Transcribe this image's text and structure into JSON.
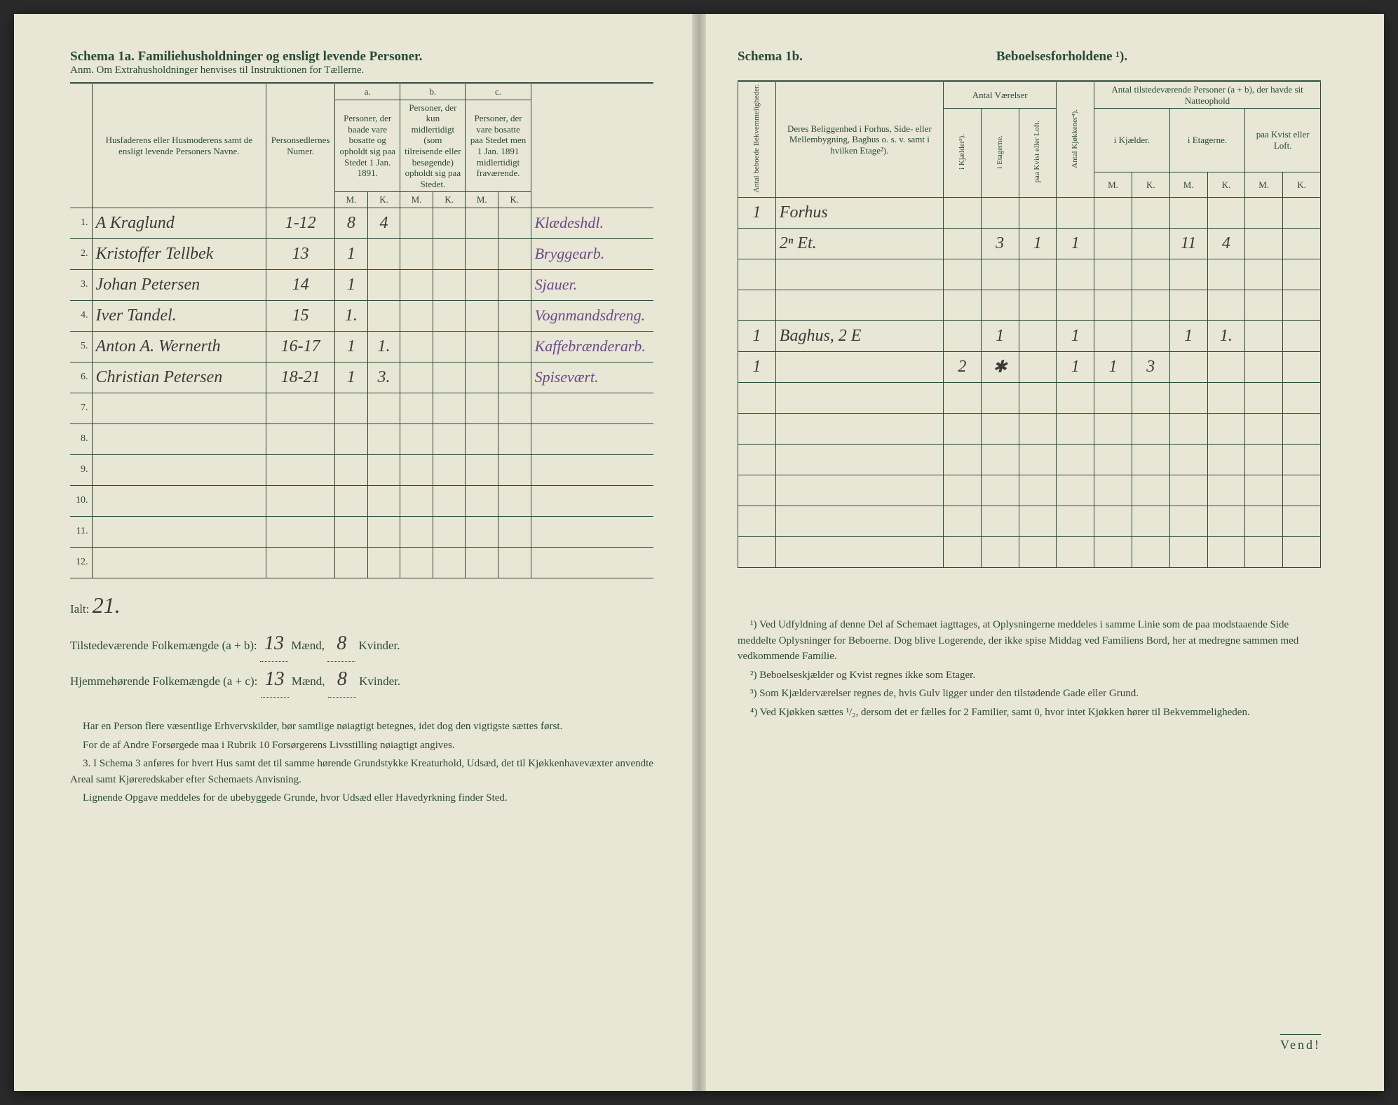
{
  "left": {
    "title": "Schema 1a.  Familiehusholdninger og ensligt levende Personer.",
    "subtitle": "Anm. Om Extrahusholdninger henvises til Instruktionen for Tællerne.",
    "headers": {
      "col1": "Husfaderens eller Husmoderens samt de ensligt levende Personers Navne.",
      "col2": "Personsedlernes Numer.",
      "sec_a": "a.",
      "sec_a_text": "Personer, der baade vare bosatte og opholdt sig paa Stedet 1 Jan. 1891.",
      "sec_b": "b.",
      "sec_b_text": "Personer, der kun midlertidigt (som tilreisende eller besøgende) opholdt sig paa Stedet.",
      "sec_c": "c.",
      "sec_c_text": "Personer, der vare bosatte paa Stedet men 1 Jan. 1891 midlertidigt fraværende.",
      "M": "M.",
      "K": "K."
    },
    "rows": [
      {
        "n": "1.",
        "name": "A Kraglund",
        "ids": "1-12",
        "aM": "8",
        "aK": "4",
        "bM": "",
        "bK": "",
        "cM": "",
        "cK": "",
        "occ": "Klædeshdl."
      },
      {
        "n": "2.",
        "name": "Kristoffer Tellbek",
        "ids": "13",
        "aM": "1",
        "aK": "",
        "bM": "",
        "bK": "",
        "cM": "",
        "cK": "",
        "occ": "Bryggearb."
      },
      {
        "n": "3.",
        "name": "Johan Petersen",
        "ids": "14",
        "aM": "1",
        "aK": "",
        "bM": "",
        "bK": "",
        "cM": "",
        "cK": "",
        "occ": "Sjauer."
      },
      {
        "n": "4.",
        "name": "Iver Tandel.",
        "ids": "15",
        "aM": "1.",
        "aK": "",
        "bM": "",
        "bK": "",
        "cM": "",
        "cK": "",
        "occ": "Vognmandsdreng."
      },
      {
        "n": "5.",
        "name": "Anton A. Wernerth",
        "ids": "16-17",
        "aM": "1",
        "aK": "1.",
        "bM": "",
        "bK": "",
        "cM": "",
        "cK": "",
        "occ": "Kaffebrænderarb."
      },
      {
        "n": "6.",
        "name": "Christian Petersen",
        "ids": "18-21",
        "aM": "1",
        "aK": "3.",
        "bM": "",
        "bK": "",
        "cM": "",
        "cK": "",
        "occ": "Spisevært."
      },
      {
        "n": "7.",
        "name": "",
        "ids": "",
        "aM": "",
        "aK": "",
        "bM": "",
        "bK": "",
        "cM": "",
        "cK": "",
        "occ": ""
      },
      {
        "n": "8.",
        "name": "",
        "ids": "",
        "aM": "",
        "aK": "",
        "bM": "",
        "bK": "",
        "cM": "",
        "cK": "",
        "occ": ""
      },
      {
        "n": "9.",
        "name": "",
        "ids": "",
        "aM": "",
        "aK": "",
        "bM": "",
        "bK": "",
        "cM": "",
        "cK": "",
        "occ": ""
      },
      {
        "n": "10.",
        "name": "",
        "ids": "",
        "aM": "",
        "aK": "",
        "bM": "",
        "bK": "",
        "cM": "",
        "cK": "",
        "occ": ""
      },
      {
        "n": "11.",
        "name": "",
        "ids": "",
        "aM": "",
        "aK": "",
        "bM": "",
        "bK": "",
        "cM": "",
        "cK": "",
        "occ": ""
      },
      {
        "n": "12.",
        "name": "",
        "ids": "",
        "aM": "",
        "aK": "",
        "bM": "",
        "bK": "",
        "cM": "",
        "cK": "",
        "occ": ""
      }
    ],
    "totals": {
      "ialt_label": "Ialt:",
      "ialt_val": "21.",
      "line1_pre": "Tilstedeværende Folkemængde (a + b): ",
      "line1_m": "13",
      "line1_mid": " Mænd, ",
      "line1_k": "8",
      "line1_end": " Kvinder.",
      "line2_pre": "Hjemmehørende Folkemængde (a + c): ",
      "line2_m": "13",
      "line2_mid": " Mænd, ",
      "line2_k": "8",
      "line2_end": " Kvinder."
    },
    "footnotes": [
      "Har en Person flere væsentlige Erhvervskilder, bør samtlige nøiagtigt betegnes, idet dog den vigtigste sættes først.",
      "For de af Andre Forsørgede maa i Rubrik 10 Forsørgerens Livsstilling nøiagtigt angives.",
      "3. I Schema 3 anføres for hvert Hus samt det til samme hørende Grundstykke Kreaturhold, Udsæd, det til Kjøkkenhavevæxter anvendte Areal samt Kjøreredskaber efter Schemaets Anvisning.",
      "Lignende Opgave meddeles for de ubebyggede Grunde, hvor Udsæd eller Havedyrkning finder Sted."
    ]
  },
  "right": {
    "title_left": "Schema 1b.",
    "title_right": "Beboelsesforholdene ¹).",
    "headers": {
      "col1": "Antal beboede Bekvemmeligheder.",
      "col2": "Deres Beliggenhed i Forhus, Side- eller Mellembygning, Baghus o. s. v. samt i hvilken Etage²).",
      "rooms": "Antal Værelser",
      "rooms_sub": [
        "i Kjælder³).",
        "i Etagerne.",
        "paa Kvist eller Loft.",
        "Antal Kjøkkener⁴)."
      ],
      "present": "Antal tilstedeværende Personer (a + b), der havde sit Natteophold",
      "present_sub": [
        "i Kjælder.",
        "i Etagerne.",
        "paa Kvist eller Loft."
      ],
      "M": "M.",
      "K": "K."
    },
    "rows": [
      {
        "cnt": "1",
        "loc": "Forhus",
        "k": "",
        "et": "",
        "kv": "",
        "kk": "",
        "kjM": "",
        "kjK": "",
        "etM": "",
        "etK": "",
        "kvM": "",
        "kvK": ""
      },
      {
        "cnt": "",
        "loc": "2ⁿ Et.",
        "k": "",
        "et": "3",
        "kv": "1",
        "kk": "1",
        "kjM": "",
        "kjK": "",
        "etM": "11",
        "etK": "4",
        "kvM": "",
        "kvK": ""
      },
      {
        "cnt": "",
        "loc": "",
        "k": "",
        "et": "",
        "kv": "",
        "kk": "",
        "kjM": "",
        "kjK": "",
        "etM": "",
        "etK": "",
        "kvM": "",
        "kvK": ""
      },
      {
        "cnt": "",
        "loc": "",
        "k": "",
        "et": "",
        "kv": "",
        "kk": "",
        "kjM": "",
        "kjK": "",
        "etM": "",
        "etK": "",
        "kvM": "",
        "kvK": ""
      },
      {
        "cnt": "1",
        "loc": "Baghus, 2 E",
        "k": "",
        "et": "1",
        "kv": "",
        "kk": "1",
        "kjM": "",
        "kjK": "",
        "etM": "1",
        "etK": "1.",
        "kvM": "",
        "kvK": ""
      },
      {
        "cnt": "1",
        "loc": "",
        "k": "2",
        "et": "✱",
        "kv": "",
        "kk": "1",
        "kjM": "1",
        "kjK": "3",
        "etM": "",
        "etK": "",
        "kvM": "",
        "kvK": ""
      },
      {
        "cnt": "",
        "loc": "",
        "k": "",
        "et": "",
        "kv": "",
        "kk": "",
        "kjM": "",
        "kjK": "",
        "etM": "",
        "etK": "",
        "kvM": "",
        "kvK": ""
      },
      {
        "cnt": "",
        "loc": "",
        "k": "",
        "et": "",
        "kv": "",
        "kk": "",
        "kjM": "",
        "kjK": "",
        "etM": "",
        "etK": "",
        "kvM": "",
        "kvK": ""
      },
      {
        "cnt": "",
        "loc": "",
        "k": "",
        "et": "",
        "kv": "",
        "kk": "",
        "kjM": "",
        "kjK": "",
        "etM": "",
        "etK": "",
        "kvM": "",
        "kvK": ""
      },
      {
        "cnt": "",
        "loc": "",
        "k": "",
        "et": "",
        "kv": "",
        "kk": "",
        "kjM": "",
        "kjK": "",
        "etM": "",
        "etK": "",
        "kvM": "",
        "kvK": ""
      },
      {
        "cnt": "",
        "loc": "",
        "k": "",
        "et": "",
        "kv": "",
        "kk": "",
        "kjM": "",
        "kjK": "",
        "etM": "",
        "etK": "",
        "kvM": "",
        "kvK": ""
      },
      {
        "cnt": "",
        "loc": "",
        "k": "",
        "et": "",
        "kv": "",
        "kk": "",
        "kjM": "",
        "kjK": "",
        "etM": "",
        "etK": "",
        "kvM": "",
        "kvK": ""
      }
    ],
    "footnotes": [
      "¹) Ved Udfyldning af denne Del af Schemaet iagttages, at Oplysningerne meddeles i samme Linie som de paa modstaaende Side meddelte Oplysninger for Beboerne. Dog blive Logerende, der ikke spise Middag ved Familiens Bord, her at medregne sammen med vedkommende Familie.",
      "²) Beboelseskjælder og Kvist regnes ikke som Etager.",
      "³) Som Kjælderværelser regnes de, hvis Gulv ligger under den tilstødende Gade eller Grund.",
      "⁴) Ved Kjøkken sættes ¹/₂, dersom det er fælles for 2 Familier, samt 0, hvor intet Kjøkken hører til Bekvemmeligheden."
    ],
    "vend": "Vend!"
  },
  "colors": {
    "paper": "#e8e6d4",
    "ink": "#2a4a3a",
    "pen": "#3a3a3a",
    "purple": "#6a4a8a"
  }
}
